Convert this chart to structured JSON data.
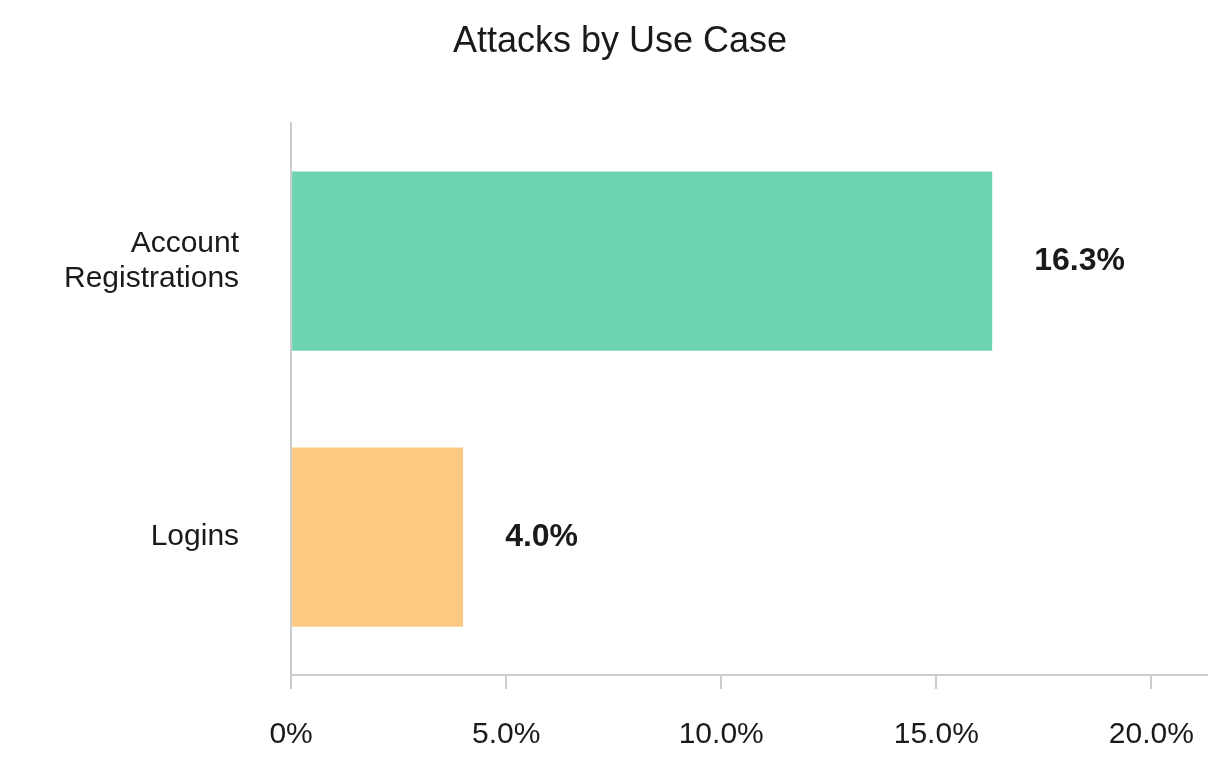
{
  "chart_data": {
    "type": "bar",
    "orientation": "horizontal",
    "title": "Attacks by Use Case",
    "categories": [
      "Account Registrations",
      "Logins"
    ],
    "values": [
      16.3,
      4.0
    ],
    "colors": [
      "#6dd4b1",
      "#fdca84"
    ],
    "value_labels": [
      "16.3%",
      "4.0%"
    ],
    "xlim": [
      0,
      21.3
    ],
    "xticks": [
      {
        "value": 0,
        "label": "0%"
      },
      {
        "value": 5,
        "label": "5.0%"
      },
      {
        "value": 10,
        "label": "10.0%"
      },
      {
        "value": 15,
        "label": "15.0%"
      },
      {
        "value": 20,
        "label": "20.0%"
      }
    ],
    "grid": false,
    "legend": false
  }
}
